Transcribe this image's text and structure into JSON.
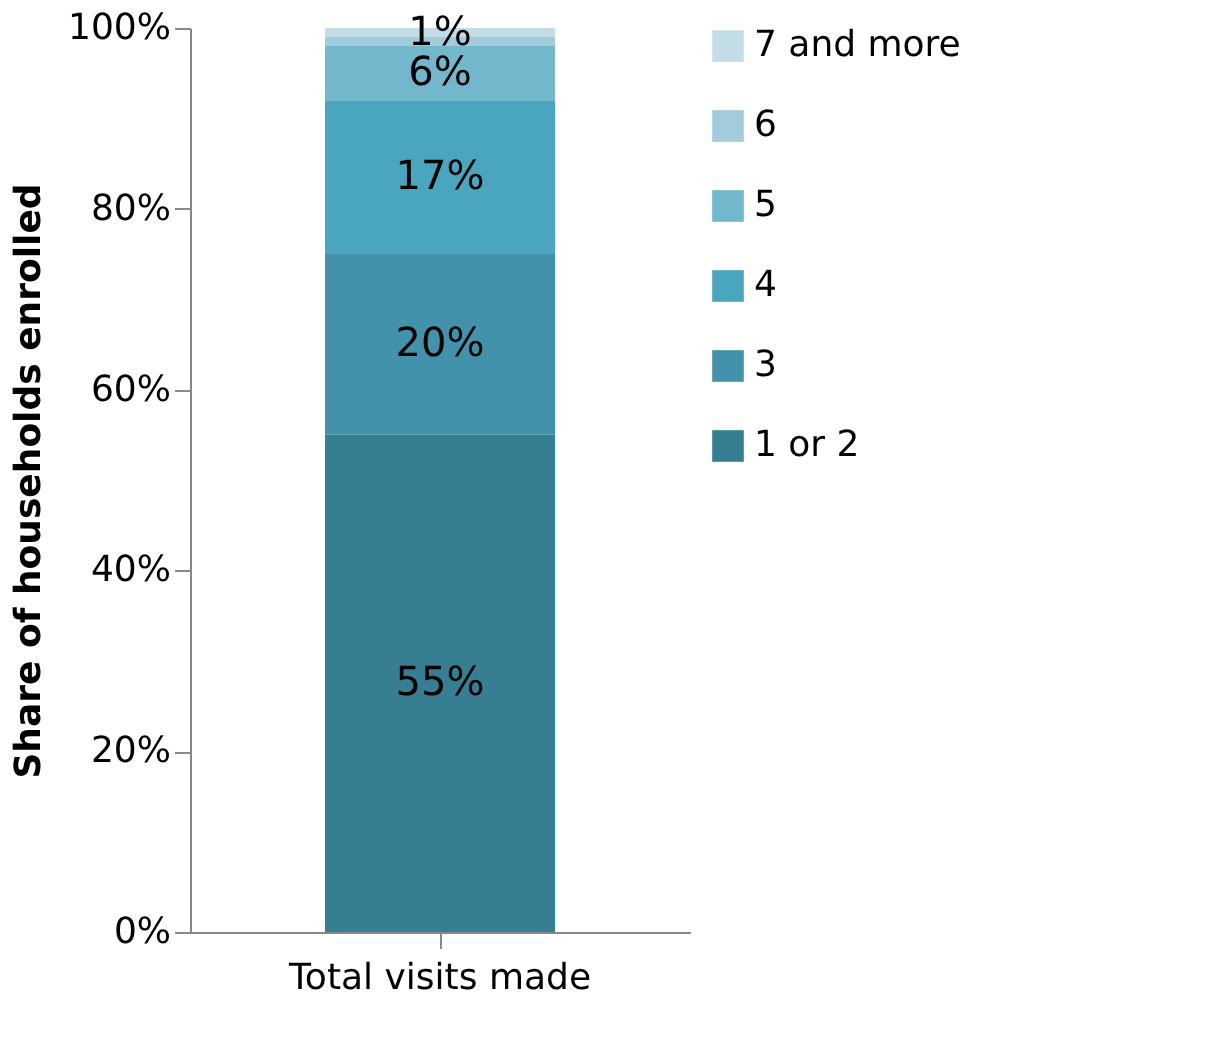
{
  "chart_data": {
    "type": "bar",
    "stacked": true,
    "categories": [
      "Total visits made"
    ],
    "ylabel": "Share of households enrolled",
    "ylim": [
      0,
      100
    ],
    "yticks": [
      {
        "value": 0,
        "label": "0%"
      },
      {
        "value": 20,
        "label": "20%"
      },
      {
        "value": 40,
        "label": "40%"
      },
      {
        "value": 60,
        "label": "60%"
      },
      {
        "value": 80,
        "label": "80%"
      },
      {
        "value": 100,
        "label": "100%"
      }
    ],
    "series": [
      {
        "name": "1 or 2",
        "color": "#367e92",
        "values": [
          55
        ],
        "value_labels": [
          "55%"
        ]
      },
      {
        "name": "3",
        "color": "#4292ab",
        "values": [
          20
        ],
        "value_labels": [
          "20%"
        ]
      },
      {
        "name": "4",
        "color": "#4aa6bf",
        "values": [
          17
        ],
        "value_labels": [
          "17%"
        ]
      },
      {
        "name": "5",
        "color": "#72b7cc",
        "values": [
          6
        ],
        "value_labels": [
          "6%"
        ]
      },
      {
        "name": "6",
        "color": "#a2cbdb",
        "values": [
          1
        ],
        "value_labels": [
          null
        ]
      },
      {
        "name": "7 and more",
        "color": "#c3dde6",
        "values": [
          1
        ],
        "value_labels": [
          "1%"
        ]
      }
    ],
    "legend": "right",
    "grid": false
  }
}
